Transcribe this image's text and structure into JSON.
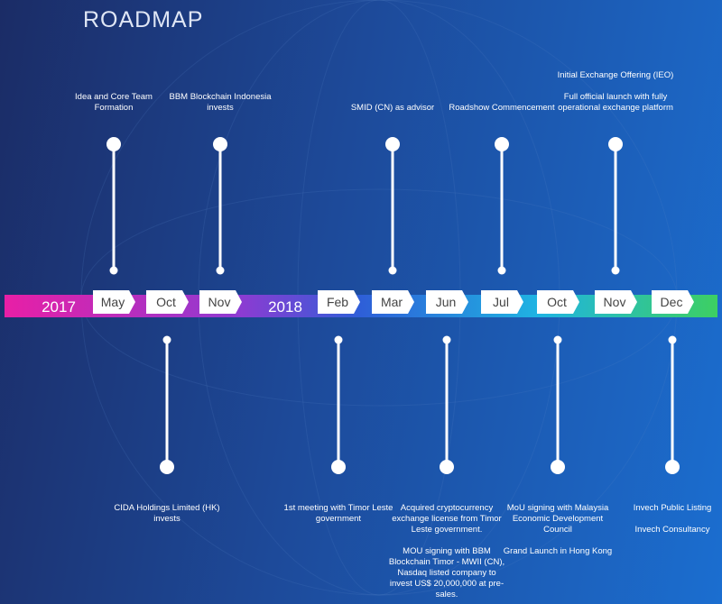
{
  "title": "ROADMAP",
  "years": [
    "2017",
    "2018"
  ],
  "months": [
    {
      "label": "May",
      "above": [
        "Idea and Core Team Formation"
      ]
    },
    {
      "label": "Oct",
      "below": [
        "CIDA Holdings Limited (HK) invests"
      ]
    },
    {
      "label": "Nov",
      "above": [
        "BBM Blockchain Indonesia invests"
      ]
    },
    {
      "label": "Feb",
      "below": [
        "1st meeting with Timor Leste government"
      ]
    },
    {
      "label": "Mar",
      "above": [
        "SMID (CN) as advisor"
      ]
    },
    {
      "label": "Jun",
      "below": [
        "Acquired cryptocurrency exchange license from Timor Leste government.",
        "MOU signing with BBM Blockchain Timor - MWII (CN), Nasdaq listed company to invest US$ 20,000,000 at pre-sales."
      ]
    },
    {
      "label": "Jul",
      "above": [
        "Roadshow Commencement"
      ]
    },
    {
      "label": "Oct",
      "below": [
        "MoU signing with Malaysia Economic Development Council",
        "Grand Launch in Hong Kong"
      ]
    },
    {
      "label": "Nov",
      "above": [
        "Initial Exchange Offering (IEO)",
        "Full official launch with fully operational exchange platform"
      ]
    },
    {
      "label": "Dec",
      "below": [
        "Invech Public Listing",
        "Invech Consultancy"
      ]
    }
  ]
}
